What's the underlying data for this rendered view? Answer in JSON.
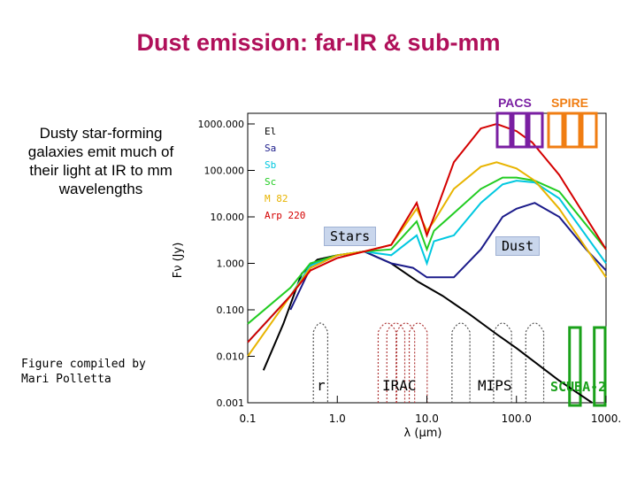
{
  "title": "Dust emission: far-IR & sub-mm",
  "bullet_text": "Dusty star-forming galaxies emit much of their light at IR to mm wavelengths",
  "credit_text": "Figure compiled by Mari Polletta",
  "instruments": {
    "pacs": "PACS",
    "spire": "SPIRE"
  },
  "annotations": {
    "stars": "Stars",
    "dust": "Dust"
  },
  "band_labels": {
    "r": "r",
    "irac": "IRAC",
    "mips": "MIPS",
    "scuba": "SCUBA-2"
  },
  "colors": {
    "title": "#b0105a",
    "pacs": "#7a1fa2",
    "spire": "#f07d12",
    "scuba": "#1aa11a",
    "label_box": "#c9d6ec"
  },
  "chart_data": {
    "type": "line",
    "xlabel": "λ (μm)",
    "ylabel": "Fν (Jy)",
    "x_scale": "log",
    "y_scale": "log",
    "xlim": [
      0.1,
      1000
    ],
    "ylim": [
      0.001,
      1000
    ],
    "x_ticks": [
      "0.1",
      "1.0",
      "10.0",
      "100.0",
      "1000."
    ],
    "y_ticks": [
      "1000.000",
      "100.000",
      "10.000",
      "1.000",
      "0.100",
      "0.010",
      "0.001"
    ],
    "legend": [
      "El",
      "Sa",
      "Sb",
      "Sc",
      "M 82",
      "Arp 220"
    ],
    "series": [
      {
        "name": "El",
        "color": "#000000",
        "x": [
          0.15,
          0.25,
          0.4,
          0.6,
          1.0,
          2.0,
          4.0,
          8.0,
          15.0,
          30.0,
          60.0,
          100.0,
          300.0,
          700.0
        ],
        "y": [
          0.005,
          0.05,
          0.6,
          1.2,
          1.5,
          1.8,
          1.0,
          0.4,
          0.2,
          0.08,
          0.03,
          0.015,
          0.003,
          0.001
        ]
      },
      {
        "name": "Sa",
        "color": "#1b1b8a",
        "x": [
          0.3,
          0.5,
          1.0,
          2.0,
          4.0,
          7.0,
          10.0,
          20.0,
          40.0,
          70.0,
          100.0,
          160.0,
          300.0,
          600.0,
          1000.0
        ],
        "y": [
          0.1,
          0.8,
          1.5,
          1.8,
          1.0,
          0.8,
          0.5,
          0.5,
          2.0,
          10.0,
          15.0,
          20.0,
          10.0,
          2.0,
          0.7
        ]
      },
      {
        "name": "Sb",
        "color": "#00c8e0",
        "x": [
          0.1,
          0.3,
          0.5,
          1.0,
          2.0,
          4.0,
          7.7,
          10.0,
          12.0,
          20.0,
          40.0,
          70.0,
          100.0,
          160.0,
          300.0,
          1000.0
        ],
        "y": [
          0.02,
          0.2,
          0.9,
          1.5,
          1.8,
          1.5,
          4.0,
          1.0,
          3.0,
          4.0,
          20.0,
          50.0,
          60.0,
          55.0,
          25.0,
          1.0
        ]
      },
      {
        "name": "Sc",
        "color": "#22cc22",
        "x": [
          0.1,
          0.3,
          0.5,
          1.0,
          2.0,
          4.0,
          7.7,
          10.0,
          12.0,
          20.0,
          40.0,
          70.0,
          100.0,
          160.0,
          300.0,
          1000.0
        ],
        "y": [
          0.05,
          0.3,
          1.0,
          1.5,
          1.8,
          2.0,
          8.0,
          2.0,
          5.0,
          12.0,
          40.0,
          70.0,
          70.0,
          60.0,
          35.0,
          2.0
        ]
      },
      {
        "name": "M 82",
        "color": "#e8b400",
        "x": [
          0.1,
          0.3,
          0.5,
          1.0,
          2.0,
          4.0,
          7.7,
          10.0,
          12.0,
          20.0,
          40.0,
          60.0,
          100.0,
          160.0,
          300.0,
          1000.0
        ],
        "y": [
          0.01,
          0.2,
          0.8,
          1.5,
          1.8,
          2.5,
          15.0,
          5.0,
          8.0,
          40.0,
          120.0,
          150.0,
          110.0,
          60.0,
          15.0,
          0.5
        ]
      },
      {
        "name": "Arp 220",
        "color": "#d40000",
        "x": [
          0.1,
          0.3,
          0.5,
          1.0,
          2.0,
          4.0,
          7.7,
          10.0,
          12.0,
          20.0,
          40.0,
          60.0,
          100.0,
          150.0,
          300.0,
          1000.0
        ],
        "y": [
          0.02,
          0.2,
          0.7,
          1.3,
          1.8,
          2.5,
          20.0,
          4.0,
          10.0,
          150.0,
          800.0,
          1000.0,
          700.0,
          400.0,
          80.0,
          2.0
        ]
      }
    ]
  }
}
